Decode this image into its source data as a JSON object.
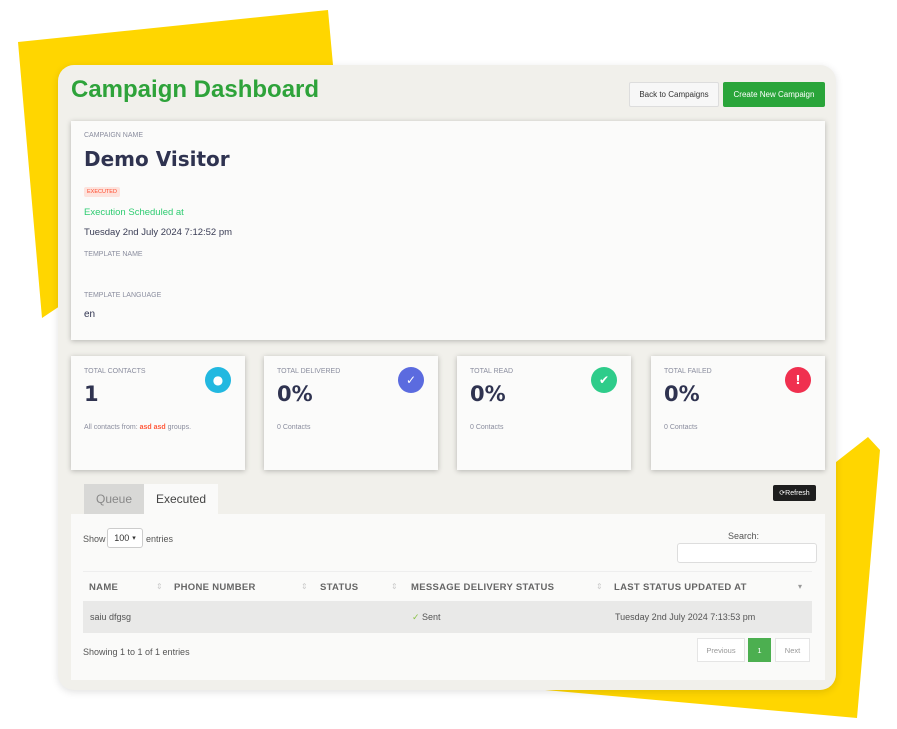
{
  "colors": {
    "accent": "#2ea33a",
    "frame": "#ffd600",
    "executed_badge": "#ff5a3c",
    "contacts_icon": "#22b8e0",
    "delivered_icon": "#5b6bdf",
    "read_icon": "#2ecc8a",
    "failed_icon": "#f0304f"
  },
  "header": {
    "title": "Campaign Dashboard",
    "back_label": "Back to Campaigns",
    "create_label": "Create New Campaign"
  },
  "campaign": {
    "name_label": "CAMPAIGN NAME",
    "name": "Demo Visitor",
    "status_badge": "EXECUTED",
    "scheduled_label": "Execution Scheduled at",
    "scheduled_at": "Tuesday 2nd July 2024 7:12:52 pm",
    "template_name_label": "TEMPLATE NAME",
    "template_name": "",
    "template_language_label": "TEMPLATE LANGUAGE",
    "template_language": "en"
  },
  "stats": [
    {
      "label": "TOTAL CONTACTS",
      "value": "1",
      "sub_prefix": "All contacts from: ",
      "sub_highlight": "asd asd",
      "sub_suffix": " groups.",
      "icon": "user-icon"
    },
    {
      "label": "TOTAL DELIVERED",
      "value": "0%",
      "sub": "0 Contacts",
      "icon": "check-icon"
    },
    {
      "label": "TOTAL READ",
      "value": "0%",
      "sub": "0 Contacts",
      "icon": "double-check-icon"
    },
    {
      "label": "TOTAL FAILED",
      "value": "0%",
      "sub": "0 Contacts",
      "icon": "alert-icon"
    }
  ],
  "tabs": [
    {
      "label": "Queue"
    },
    {
      "label": "Executed",
      "active": true
    }
  ],
  "refresh_label": "Refresh",
  "table": {
    "show_label": "Show",
    "entries_value": "100",
    "entries_label": "entries",
    "search_label": "Search:",
    "search_value": "",
    "columns": [
      "NAME",
      "PHONE NUMBER",
      "STATUS",
      "MESSAGE DELIVERY STATUS",
      "LAST STATUS UPDATED AT"
    ],
    "rows": [
      {
        "name": "saiu dfgsg",
        "phone": "",
        "status": "",
        "delivery": "Sent",
        "updated": "Tuesday 2nd July 2024 7:13:53 pm"
      }
    ],
    "info": "Showing 1 to 1 of 1 entries",
    "prev": "Previous",
    "page": "1",
    "next": "Next"
  }
}
